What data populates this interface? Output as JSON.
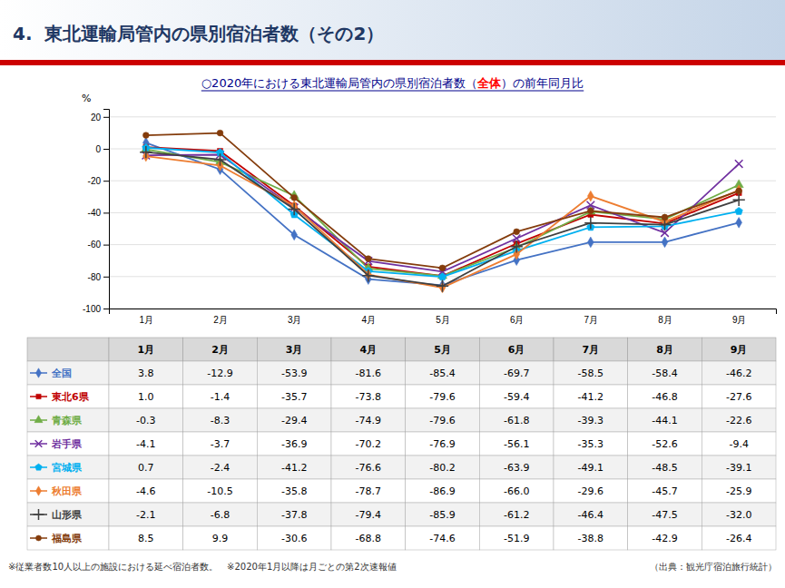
{
  "chart_data": {
    "type": "line",
    "title": "4.  東北運輸局管内の県別宿泊者数（その2）",
    "subtitle": [
      "○2020年における東北運輸局管内の県別宿泊者数（",
      "全体",
      "）の前年同月比"
    ],
    "ylabel": "%",
    "categories": [
      "1月",
      "2月",
      "3月",
      "4月",
      "5月",
      "6月",
      "7月",
      "8月",
      "9月"
    ],
    "ylim": [
      -100,
      25
    ],
    "yticks": [
      20,
      0,
      -20,
      -40,
      -60,
      -80,
      -100
    ],
    "grid": true,
    "series": [
      {
        "name": "全国",
        "color": "#4472C4",
        "marker": "diamond",
        "values": [
          3.8,
          -12.9,
          -53.9,
          -81.6,
          -85.4,
          -69.7,
          -58.5,
          -58.4,
          -46.2
        ],
        "value_labels": [
          "3.8",
          "-12.9",
          "-53.9",
          "-81.6",
          "-85.4",
          "-69.7",
          "-58.5",
          "-58.4",
          "-46.2"
        ]
      },
      {
        "name": "東北6県",
        "color": "#C00000",
        "marker": "square",
        "values": [
          1.0,
          -1.4,
          -35.7,
          -73.8,
          -79.6,
          -59.4,
          -41.2,
          -46.8,
          -27.6
        ],
        "value_labels": [
          "1.0",
          "-1.4",
          "-35.7",
          "-73.8",
          "-79.6",
          "-59.4",
          "-41.2",
          "-46.8",
          "-27.6"
        ]
      },
      {
        "name": "青森県",
        "color": "#70AD47",
        "marker": "triangle",
        "values": [
          -0.3,
          -8.3,
          -29.4,
          -74.9,
          -79.6,
          -61.8,
          -39.3,
          -44.1,
          -22.6
        ],
        "value_labels": [
          "-0.3",
          "-8.3",
          "-29.4",
          "-74.9",
          "-79.6",
          "-61.8",
          "-39.3",
          "-44.1",
          "-22.6"
        ]
      },
      {
        "name": "岩手県",
        "color": "#7030A0",
        "marker": "x",
        "values": [
          -4.1,
          -3.7,
          -36.9,
          -70.2,
          -76.9,
          -56.1,
          -35.3,
          -52.6,
          -9.4
        ],
        "value_labels": [
          "-4.1",
          "-3.7",
          "-36.9",
          "-70.2",
          "-76.9",
          "-56.1",
          "-35.3",
          "-52.6",
          "-9.4"
        ]
      },
      {
        "name": "宮城県",
        "color": "#00B0F0",
        "marker": "pentagon",
        "values": [
          0.7,
          -2.4,
          -41.2,
          -76.6,
          -80.2,
          -63.9,
          -49.1,
          -48.5,
          -39.1
        ],
        "value_labels": [
          "0.7",
          "-2.4",
          "-41.2",
          "-76.6",
          "-80.2",
          "-63.9",
          "-49.1",
          "-48.5",
          "-39.1"
        ]
      },
      {
        "name": "秋田県",
        "color": "#ED7D31",
        "marker": "diamond",
        "values": [
          -4.6,
          -10.5,
          -35.8,
          -78.7,
          -86.9,
          -66.0,
          -29.6,
          -45.7,
          -25.9
        ],
        "value_labels": [
          "-4.6",
          "-10.5",
          "-35.8",
          "-78.7",
          "-86.9",
          "-66.0",
          "-29.6",
          "-45.7",
          "-25.9"
        ]
      },
      {
        "name": "山形県",
        "color": "#404040",
        "marker": "plus",
        "values": [
          -2.1,
          -6.8,
          -37.8,
          -79.4,
          -85.9,
          -61.2,
          -46.4,
          -47.5,
          -32.0
        ],
        "value_labels": [
          "-2.1",
          "-6.8",
          "-37.8",
          "-79.4",
          "-85.9",
          "-61.2",
          "-46.4",
          "-47.5",
          "-32.0"
        ]
      },
      {
        "name": "福島県",
        "color": "#843C0C",
        "marker": "circle",
        "values": [
          8.5,
          9.9,
          -30.6,
          -68.8,
          -74.6,
          -51.9,
          -38.8,
          -42.9,
          -26.4
        ],
        "value_labels": [
          "8.5",
          "9.9",
          "-30.6",
          "-68.8",
          "-74.6",
          "-51.9",
          "-38.8",
          "-42.9",
          "-26.4"
        ]
      }
    ],
    "annotations": [
      "※従業者数10人以上の施設における延べ宿泊者数。　※2020年1月以降は月ごとの第2次速報値",
      "（出典：観光庁宿泊旅行統計）"
    ]
  }
}
